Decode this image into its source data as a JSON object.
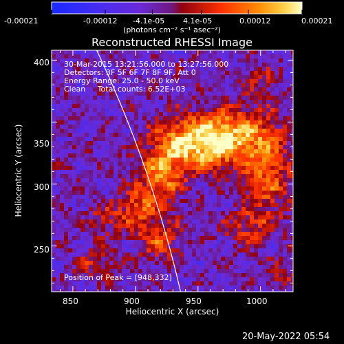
{
  "chart_data": {
    "type": "heatmap",
    "title": "Reconstructed RHESSI Image",
    "xlabel": "Heliocentric X (arcsec)",
    "ylabel": "Heliocentric Y (arcsec)",
    "xlim": [
      833,
      1026
    ],
    "ylim": [
      213,
      408
    ],
    "x_ticks": [
      850,
      900,
      950,
      1000
    ],
    "y_ticks": [
      250,
      300,
      350,
      400
    ],
    "colorbar": {
      "range": [
        -0.00021,
        0.00021
      ],
      "tick_values": [
        -0.00021,
        -0.00012,
        -4.1e-05,
        4.1e-05,
        0.00012,
        0.00021
      ],
      "tick_labels": [
        "-0.00021",
        "-0.00012",
        "-4.1e-05",
        "4.1e-05",
        "0.00012",
        "0.00021"
      ],
      "units": "(photons cm⁻² s⁻¹ asec⁻²)"
    },
    "annotations": {
      "time": "30-Mar-2015 13:21:56.000 to 13:27:56.000",
      "detectors": "Detectors: 3F 5F 6F 7F 8F 9F, Att 0",
      "energy": "Energy Range: 25.0 - 50.0 keV",
      "clean": "Clean     Total counts: 6.52E+03",
      "peak": "Position of Peak = [948,332]"
    },
    "peak": [
      948,
      332
    ],
    "limb": {
      "center": [
        0,
        0
      ],
      "radius_arcsec": 960
    },
    "sources": [
      {
        "x": 948,
        "y": 332,
        "value": 0.00021,
        "sx": 22,
        "sy": 14
      },
      {
        "x": 980,
        "y": 340,
        "value": 0.00016,
        "sx": 25,
        "sy": 16
      },
      {
        "x": 1005,
        "y": 305,
        "value": 0.00014,
        "sx": 14,
        "sy": 22
      },
      {
        "x": 920,
        "y": 305,
        "value": 0.00016,
        "sx": 12,
        "sy": 18
      },
      {
        "x": 900,
        "y": 280,
        "value": 0.00012,
        "sx": 10,
        "sy": 12
      },
      {
        "x": 920,
        "y": 255,
        "value": 0.00012,
        "sx": 12,
        "sy": 12
      },
      {
        "x": 990,
        "y": 265,
        "value": 9.5e-05,
        "sx": 14,
        "sy": 10
      },
      {
        "x": 1000,
        "y": 385,
        "value": 8e-05,
        "sx": 8,
        "sy": 8
      },
      {
        "x": 875,
        "y": 270,
        "value": 8e-05,
        "sx": 10,
        "sy": 10
      },
      {
        "x": 870,
        "y": 235,
        "value": 9e-05,
        "sx": 12,
        "sy": 8
      },
      {
        "x": 1015,
        "y": 225,
        "value": 7e-05,
        "sx": 10,
        "sy": 8
      }
    ],
    "grid": false
  },
  "footer": {
    "date": "20-May-2022 05:54"
  }
}
